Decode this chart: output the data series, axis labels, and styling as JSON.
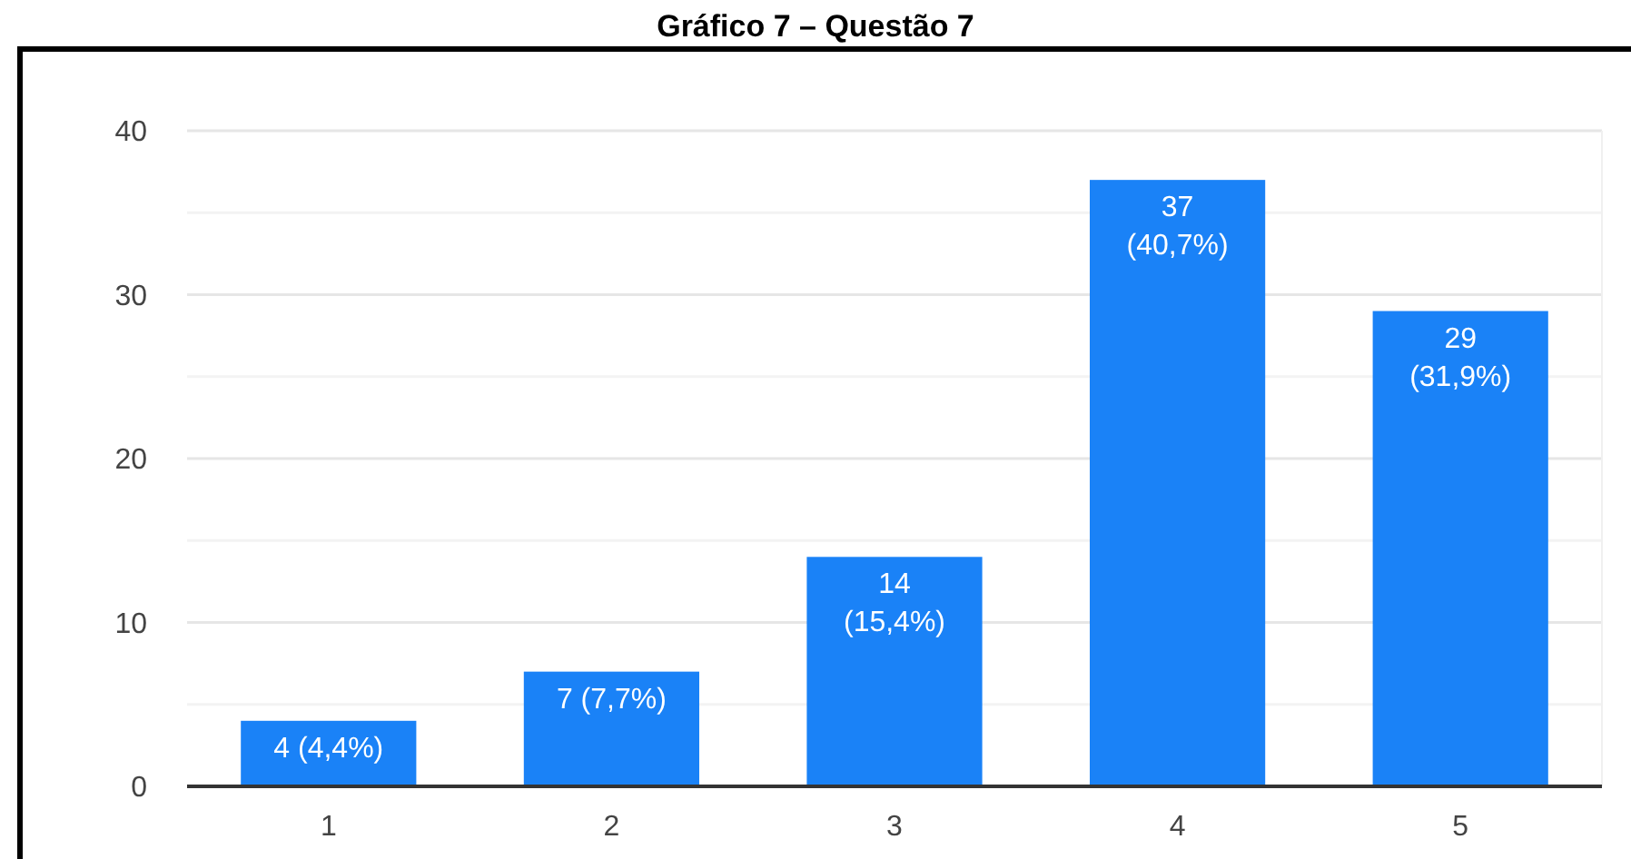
{
  "chart_data": {
    "type": "bar",
    "title": "Gráfico 7 – Questão 7",
    "categories": [
      "1",
      "2",
      "3",
      "4",
      "5"
    ],
    "values": [
      4,
      7,
      14,
      37,
      29
    ],
    "color": "#1a82f7",
    "value_labels": [
      "4 (4,4%)",
      "7 (7,7%)",
      "14 (15,4%)",
      "37 (40,7%)",
      "29 (31,9%)"
    ],
    "ylim": [
      0,
      40
    ],
    "yticks": [
      0,
      {
        "value": 5,
        "label": null
      },
      10,
      {
        "value": 15,
        "label": null
      },
      20,
      {
        "value": 25,
        "label": null
      },
      30,
      {
        "value": 35,
        "label": null
      },
      40
    ],
    "grid": true
  }
}
